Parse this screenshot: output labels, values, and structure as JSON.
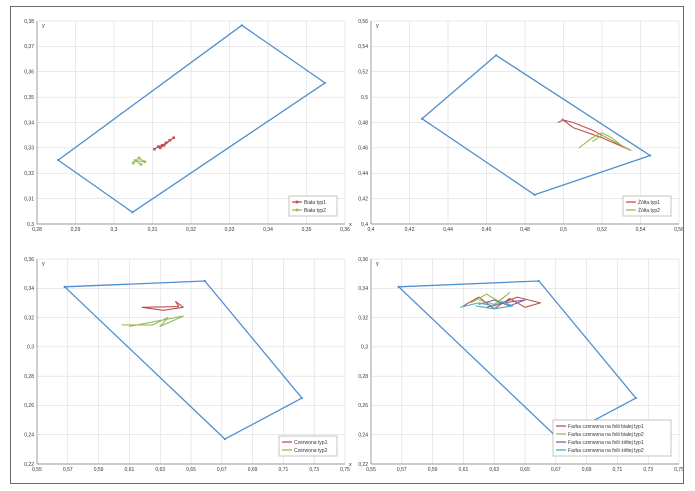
{
  "chart_data": [
    {
      "type": "line",
      "xlabel": "x",
      "ylabel": "y",
      "xlim": [
        0.28,
        0.36
      ],
      "ylim": [
        0.3,
        0.38
      ],
      "x_ticks": [
        "0,28",
        "0,29",
        "0,3",
        "0,31",
        "0,32",
        "0,33",
        "0,34",
        "0,35",
        "0,36"
      ],
      "y_ticks": [
        "0,3",
        "0,31",
        "0,32",
        "0,33",
        "0,34",
        "0,35",
        "0,36",
        "0,37",
        "0,38"
      ],
      "legend_position": "bottom-right",
      "series": [
        {
          "name": "",
          "color": "#4f8fd0",
          "marker": false,
          "x": [
            0.2855,
            0.3332,
            0.3548,
            0.3048,
            0.2855
          ],
          "y": [
            0.3252,
            0.3783,
            0.3556,
            0.3046,
            0.3252
          ]
        },
        {
          "name": "Biała typ1",
          "color": "#c0504d",
          "marker": true,
          "x": [
            0.3105,
            0.3115,
            0.3125,
            0.3135,
            0.3145,
            0.3155,
            0.313,
            0.312
          ],
          "y": [
            0.3295,
            0.3305,
            0.331,
            0.332,
            0.333,
            0.334,
            0.331,
            0.33
          ]
        },
        {
          "name": "Biała typ2",
          "color": "#9bbb59",
          "marker": true,
          "x": [
            0.305,
            0.3065,
            0.308,
            0.3055,
            0.307
          ],
          "y": [
            0.324,
            0.326,
            0.3245,
            0.325,
            0.3235
          ]
        }
      ]
    },
    {
      "type": "line",
      "xlabel": "x",
      "ylabel": "y",
      "xlim": [
        0.4,
        0.56
      ],
      "ylim": [
        0.4,
        0.56
      ],
      "x_ticks": [
        "0,4",
        "0,42",
        "0,44",
        "0,46",
        "0,48",
        "0,5",
        "0,52",
        "0,54",
        "0,56"
      ],
      "y_ticks": [
        "0,4",
        "0,42",
        "0,44",
        "0,46",
        "0,48",
        "0,5",
        "0,52",
        "0,54",
        "0,56"
      ],
      "legend_position": "bottom-right",
      "series": [
        {
          "name": "",
          "color": "#4f8fd0",
          "marker": false,
          "x": [
            0.4265,
            0.465,
            0.545,
            0.485,
            0.4265
          ],
          "y": [
            0.483,
            0.533,
            0.454,
            0.423,
            0.483
          ]
        },
        {
          "name": "Żółta typ1",
          "color": "#c0504d",
          "marker": false,
          "x": [
            0.497,
            0.5,
            0.505,
            0.515,
            0.525,
            0.535,
            0.52,
            0.505,
            0.499
          ],
          "y": [
            0.48,
            0.482,
            0.48,
            0.474,
            0.466,
            0.458,
            0.468,
            0.476,
            0.483
          ]
        },
        {
          "name": "Żółta typ2",
          "color": "#9bbb59",
          "marker": false,
          "x": [
            0.508,
            0.515,
            0.52,
            0.525,
            0.53,
            0.535,
            0.52,
            0.515
          ],
          "y": [
            0.46,
            0.468,
            0.472,
            0.468,
            0.462,
            0.458,
            0.47,
            0.465
          ]
        }
      ]
    },
    {
      "type": "line",
      "xlabel": "x",
      "ylabel": "y",
      "xlim": [
        0.55,
        0.75
      ],
      "ylim": [
        0.22,
        0.36
      ],
      "x_ticks": [
        "0,55",
        "0,57",
        "0,59",
        "0,61",
        "0,63",
        "0,65",
        "0,67",
        "0,69",
        "0,71",
        "0,73",
        "0,75"
      ],
      "y_ticks": [
        "0,22",
        "0,24",
        "0,26",
        "0,28",
        "0,3",
        "0,32",
        "0,34",
        "0,36"
      ],
      "legend_position": "bottom-right",
      "series": [
        {
          "name": "",
          "color": "#4f8fd0",
          "marker": false,
          "x": [
            0.568,
            0.659,
            0.722,
            0.672,
            0.568
          ],
          "y": [
            0.341,
            0.345,
            0.265,
            0.237,
            0.341
          ]
        },
        {
          "name": "Czerwona typ1",
          "color": "#c0504d",
          "marker": false,
          "x": [
            0.618,
            0.642,
            0.64,
            0.645,
            0.632,
            0.618
          ],
          "y": [
            0.327,
            0.3275,
            0.331,
            0.327,
            0.325,
            0.327
          ]
        },
        {
          "name": "Czerwona typ2",
          "color": "#9bbb59",
          "marker": false,
          "x": [
            0.605,
            0.625,
            0.635,
            0.63,
            0.645,
            0.62,
            0.61
          ],
          "y": [
            0.315,
            0.315,
            0.32,
            0.314,
            0.321,
            0.316,
            0.314
          ]
        }
      ]
    },
    {
      "type": "line",
      "xlabel": "x",
      "ylabel": "y",
      "xlim": [
        0.55,
        0.75
      ],
      "ylim": [
        0.22,
        0.36
      ],
      "x_ticks": [
        "0,55",
        "0,57",
        "0,59",
        "0,61",
        "0,63",
        "0,65",
        "0,67",
        "0,69",
        "0,71",
        "0,73",
        "0,75"
      ],
      "y_ticks": [
        "0,22",
        "0,24",
        "0,26",
        "0,28",
        "0,3",
        "0,32",
        "0,34",
        "0,36"
      ],
      "legend_position": "bottom-right",
      "series": [
        {
          "name": "",
          "color": "#4f8fd0",
          "marker": false,
          "x": [
            0.568,
            0.659,
            0.722,
            0.672,
            0.568
          ],
          "y": [
            0.341,
            0.345,
            0.265,
            0.237,
            0.341
          ]
        },
        {
          "name": "Farba czerwona na folii białej typ1",
          "color": "#c0504d",
          "marker": false,
          "x": [
            0.61,
            0.62,
            0.63,
            0.64,
            0.65,
            0.66,
            0.645,
            0.63
          ],
          "y": [
            0.328,
            0.334,
            0.326,
            0.333,
            0.327,
            0.33,
            0.334,
            0.328
          ]
        },
        {
          "name": "Farba czerwona na folii białej typ2",
          "color": "#9bbb59",
          "marker": false,
          "x": [
            0.615,
            0.625,
            0.633,
            0.64,
            0.63,
            0.62
          ],
          "y": [
            0.33,
            0.336,
            0.331,
            0.337,
            0.329,
            0.332
          ]
        },
        {
          "name": "Farba czerwona na folii żółtej typ1",
          "color": "#8064a2",
          "marker": false,
          "x": [
            0.62,
            0.63,
            0.64,
            0.65,
            0.635,
            0.625
          ],
          "y": [
            0.329,
            0.332,
            0.328,
            0.332,
            0.33,
            0.327
          ]
        },
        {
          "name": "Farba czerwona na folii żółtej typ2",
          "color": "#4bacc6",
          "marker": false,
          "x": [
            0.608,
            0.62,
            0.63,
            0.635,
            0.642,
            0.63,
            0.618
          ],
          "y": [
            0.327,
            0.33,
            0.328,
            0.331,
            0.328,
            0.326,
            0.328
          ]
        }
      ]
    }
  ]
}
